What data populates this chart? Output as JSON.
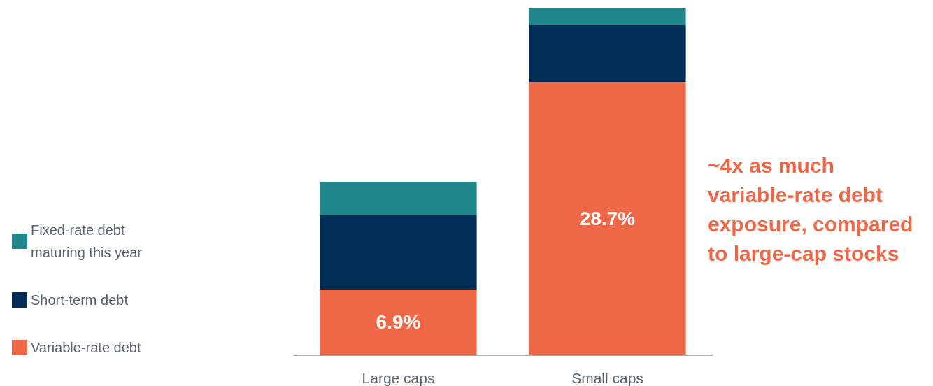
{
  "chart_data": {
    "type": "bar",
    "stacked": true,
    "categories": [
      "Large caps",
      "Small caps"
    ],
    "series": [
      {
        "name": "Variable-rate debt",
        "color": "#ee6747",
        "values": [
          6.9,
          28.7
        ],
        "value_labels": [
          "6.9%",
          "28.7%"
        ]
      },
      {
        "name": "Short-term debt",
        "color": "#002d56",
        "values": [
          7.8,
          6.0
        ]
      },
      {
        "name": "Fixed-rate debt maturing this year",
        "color": "#1f868b",
        "values": [
          3.5,
          1.7
        ]
      }
    ],
    "legend": "left",
    "annotations": [
      "~4x as much variable-rate debt exposure, compared to large-cap stocks"
    ]
  }
}
